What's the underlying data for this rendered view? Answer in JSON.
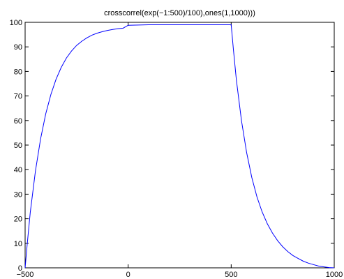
{
  "chart_data": {
    "type": "line",
    "title": "crosscorrel(exp(−1:500)/100),ones(1,1000)))",
    "xlabel": "",
    "ylabel": "",
    "xlim": [
      -500,
      1000
    ],
    "ylim": [
      0,
      100
    ],
    "xticks": [
      -500,
      0,
      500,
      1000
    ],
    "xtick_labels": [
      "−500",
      "0",
      "500",
      "1000"
    ],
    "yticks": [
      0,
      10,
      20,
      30,
      40,
      50,
      60,
      70,
      80,
      90,
      100
    ],
    "ytick_labels": [
      "0",
      "10",
      "20",
      "30",
      "40",
      "50",
      "60",
      "70",
      "80",
      "90",
      "100"
    ],
    "grid": false,
    "legend": "none",
    "series": [
      {
        "color": "#0000ff",
        "x": [
          -500,
          -490,
          -475,
          -450,
          -425,
          -400,
          -375,
          -350,
          -325,
          -300,
          -275,
          -250,
          -225,
          -200,
          -175,
          -150,
          -125,
          -100,
          -75,
          -50,
          -25,
          0,
          100,
          200,
          300,
          400,
          500,
          510,
          525,
          550,
          575,
          600,
          625,
          650,
          675,
          700,
          725,
          750,
          775,
          800,
          825,
          850,
          875,
          900,
          925,
          950,
          975,
          1000
        ],
        "y": [
          0,
          9.5,
          22.6,
          39.4,
          52.5,
          62.7,
          70.6,
          76.8,
          81.6,
          85.4,
          88.3,
          90.6,
          92.3,
          93.7,
          94.8,
          95.6,
          96.2,
          96.7,
          97.1,
          97.4,
          97.6,
          98.8,
          99.0,
          99.0,
          99.0,
          99.0,
          99.0,
          89.6,
          76.6,
          59.9,
          46.9,
          36.8,
          28.9,
          22.8,
          18.0,
          14.2,
          11.1,
          8.6,
          6.6,
          5.0,
          3.8,
          2.7,
          1.9,
          1.3,
          0.7,
          0.4,
          0.1,
          0
        ]
      }
    ]
  }
}
